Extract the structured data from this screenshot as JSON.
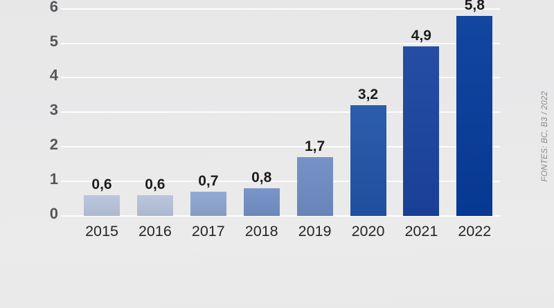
{
  "chart_data": {
    "type": "bar",
    "title": "",
    "xlabel": "",
    "ylabel": "",
    "categories": [
      "2015",
      "2016",
      "2017",
      "2018",
      "2019",
      "2020",
      "2021",
      "2022"
    ],
    "values": [
      0.6,
      0.6,
      0.7,
      0.8,
      1.7,
      3.2,
      4.9,
      5.8
    ],
    "value_labels": [
      "0,6",
      "0,6",
      "0,7",
      "0,8",
      "1,7",
      "3,2",
      "4,9",
      "5,8"
    ],
    "bar_colors": [
      "#b7c4dc",
      "#b6c3db",
      "#8ea6cf",
      "#7390c6",
      "#6f8cc3",
      "#2055a9",
      "#1a449f",
      "#063c9b"
    ],
    "ylim": [
      0,
      6
    ],
    "yticks": [
      "0",
      "1",
      "2",
      "3",
      "4",
      "5",
      "6"
    ],
    "grid": true,
    "legend": false,
    "source_note": "FONTES: BC, B3 / 2022",
    "colors": {
      "background": "#e9e9e9",
      "gridline": "#f8f8f8",
      "tick_label": "#55565a",
      "value_label": "#1c1c1c",
      "category_label": "#262626",
      "source_note": "#8a8a8a"
    }
  }
}
